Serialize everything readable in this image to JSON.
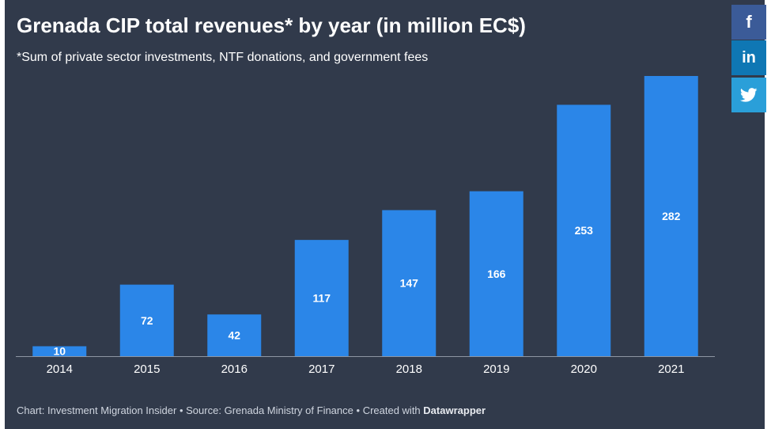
{
  "header": {
    "title": "Grenada CIP total revenues* by year (in million EC$)",
    "subtitle": "*Sum of private sector investments, NTF donations, and government fees"
  },
  "footer": {
    "chart_label": "Chart:",
    "chart_source": "Investment Migration Insider",
    "source_label": "Source:",
    "source": "Grenada Ministry of Finance",
    "created_label": "Created with",
    "tool": "Datawrapper",
    "separator": "•"
  },
  "share": {
    "facebook_label": "f",
    "linkedin_label": "in",
    "facebook_icon": "facebook-icon",
    "linkedin_icon": "linkedin-icon",
    "twitter_icon": "twitter-icon"
  },
  "colors": {
    "background": "#313a4b",
    "bar": "#2b86e8",
    "text": "#ffffff",
    "baseline": "#8e96a3"
  },
  "chart_data": {
    "type": "bar",
    "categories": [
      "2014",
      "2015",
      "2016",
      "2017",
      "2018",
      "2019",
      "2020",
      "2021"
    ],
    "values": [
      10,
      72,
      42,
      117,
      147,
      166,
      253,
      282
    ],
    "data_labels": [
      "10",
      "72",
      "42",
      "117",
      "147",
      "166",
      "253",
      "282"
    ],
    "title": "Grenada CIP total revenues* by year (in million EC$)",
    "xlabel": "",
    "ylabel": "",
    "ylim": [
      0,
      282
    ],
    "grid": false,
    "legend": "none"
  }
}
